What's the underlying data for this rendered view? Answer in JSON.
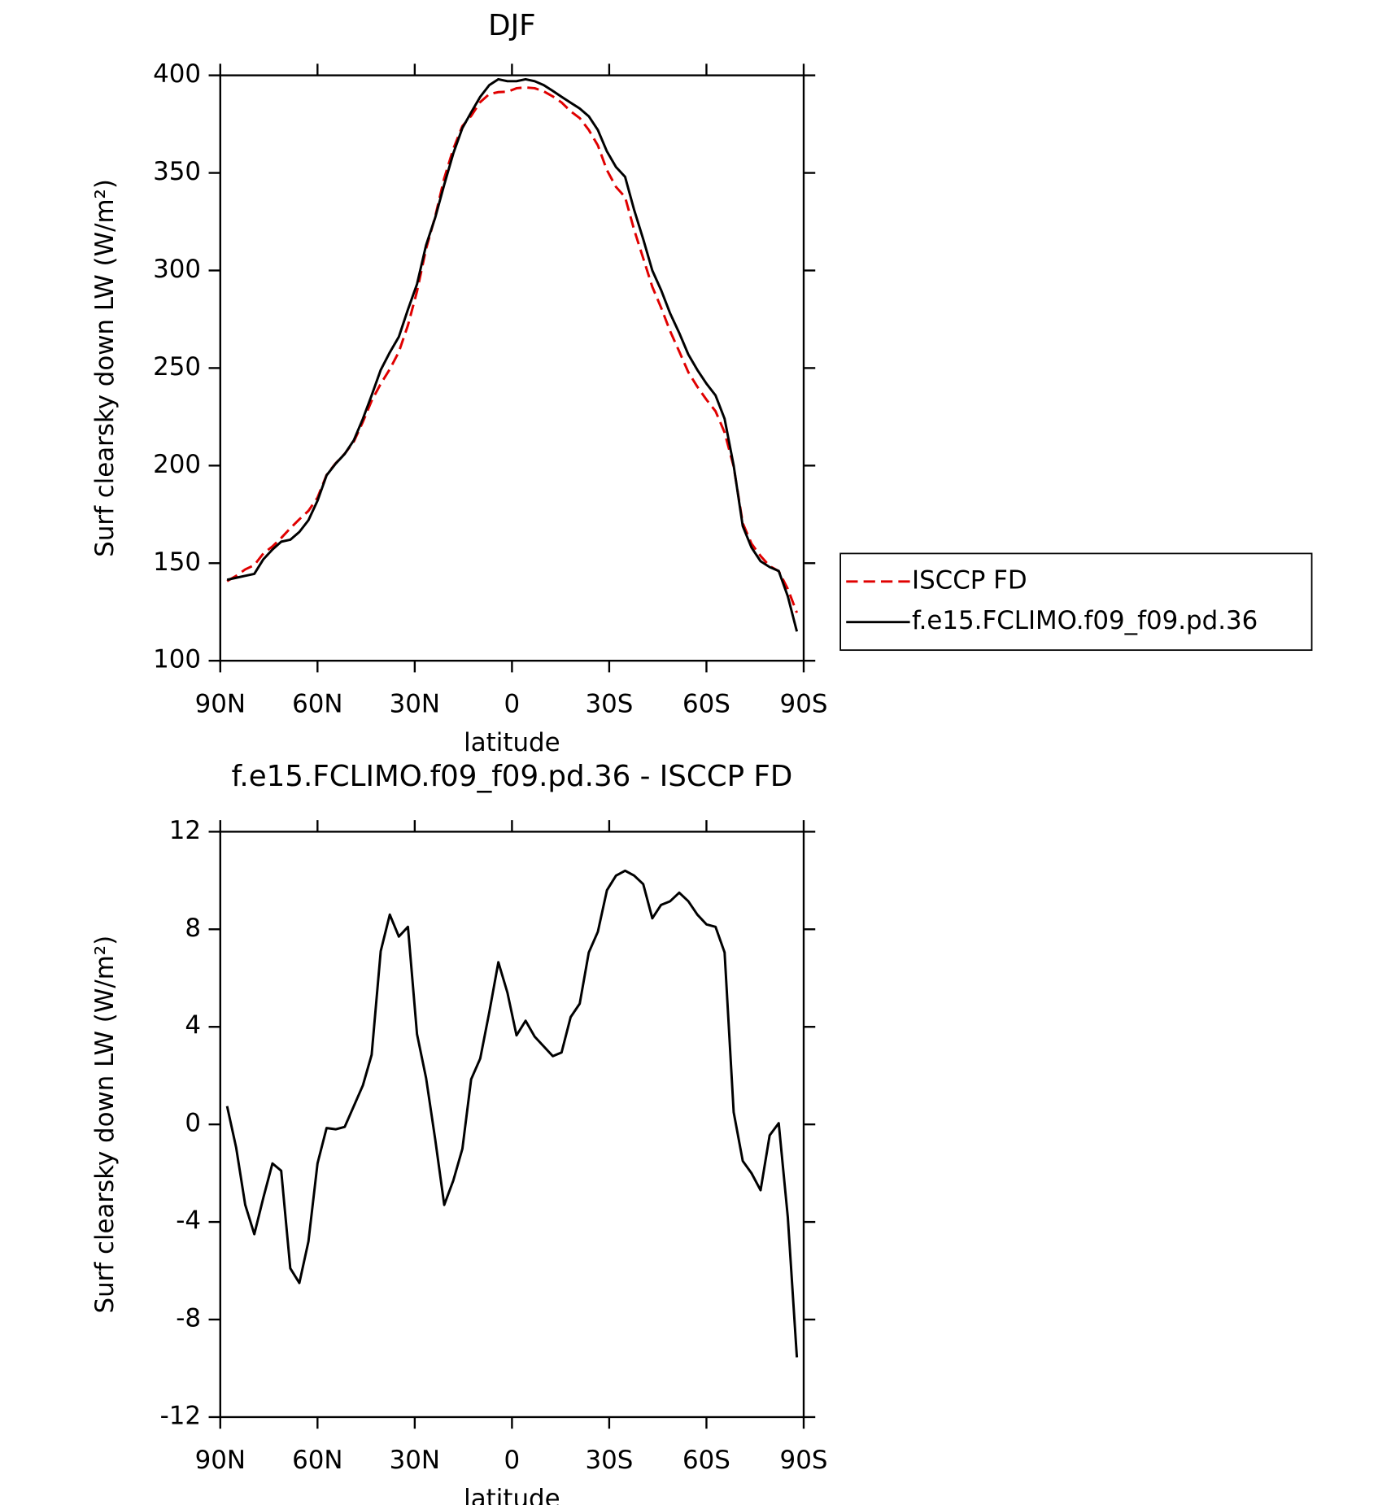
{
  "chart_data": [
    {
      "type": "line",
      "title": "DJF",
      "x_label": "latitude",
      "y_label": "Surf clearsky down LW (W/m²)",
      "x": [
        87.9,
        85.1,
        82.3,
        79.5,
        76.7,
        73.9,
        71.2,
        68.4,
        65.6,
        62.8,
        60.0,
        57.2,
        54.4,
        51.6,
        48.8,
        46.0,
        43.3,
        40.5,
        37.7,
        34.9,
        32.1,
        29.3,
        26.5,
        23.7,
        20.9,
        18.1,
        15.3,
        12.6,
        9.8,
        7.0,
        4.2,
        1.4,
        -1.4,
        -4.2,
        -7.0,
        -9.8,
        -12.6,
        -15.3,
        -18.1,
        -20.9,
        -23.7,
        -26.5,
        -29.3,
        -32.1,
        -34.9,
        -37.7,
        -40.5,
        -43.3,
        -46.0,
        -48.8,
        -51.6,
        -54.4,
        -57.2,
        -60.0,
        -62.8,
        -65.6,
        -68.4,
        -71.2,
        -73.9,
        -76.7,
        -79.5,
        -82.3,
        -85.1,
        -87.9
      ],
      "series": [
        {
          "name": "ISCCP FD",
          "color": "#e00000",
          "dash": true,
          "values": [
            140.8,
            143.5,
            146.8,
            149,
            155,
            158.6,
            162.9,
            167.9,
            172.5,
            176.8,
            183.6,
            195.2,
            201.2,
            206.1,
            212.3,
            222.4,
            233.2,
            241.9,
            249.4,
            258.3,
            271.9,
            289.3,
            311.1,
            327.6,
            347.3,
            362.3,
            374,
            379.2,
            386.3,
            390.4,
            391.4,
            391.6,
            393.4,
            393.8,
            393.4,
            391.8,
            389.2,
            386.1,
            381.6,
            378.1,
            372,
            364.1,
            351.4,
            342.8,
            337.6,
            320.8,
            306.2,
            291.6,
            281,
            268.9,
            258.5,
            247.9,
            240.4,
            233.8,
            227.9,
            217,
            199.5,
            170.5,
            160,
            153.7,
            148.5,
            145.9,
            136.8,
            124.6
          ]
        },
        {
          "name": "f.e15.FCLIMO.f09_f09.pd.36",
          "color": "#000000",
          "dash": false,
          "values": [
            141.5,
            142.5,
            143.5,
            144.5,
            152,
            157,
            161,
            162,
            166,
            172,
            182,
            195,
            201,
            206,
            213,
            224,
            236,
            249,
            258,
            266,
            280,
            293,
            313,
            327,
            344,
            360,
            373,
            381,
            389,
            395,
            398,
            397,
            397,
            398,
            397,
            395,
            392,
            389,
            386,
            383,
            379,
            372,
            361,
            353,
            348,
            331,
            316,
            300,
            290,
            278,
            268,
            257,
            249,
            242,
            236,
            224,
            200,
            169,
            158,
            151,
            148,
            146,
            133,
            115
          ]
        }
      ],
      "xlim": [
        90,
        -90
      ],
      "xticks": [
        {
          "value": 90,
          "label": "90N"
        },
        {
          "value": 60,
          "label": "60N"
        },
        {
          "value": 30,
          "label": "30N"
        },
        0,
        {
          "value": -30,
          "label": "30S"
        },
        {
          "value": -60,
          "label": "60S"
        },
        {
          "value": -90,
          "label": "90S"
        }
      ],
      "ylim": [
        100,
        400
      ],
      "yticks": [
        100,
        150,
        200,
        250,
        300,
        350,
        400
      ],
      "legend": "right"
    },
    {
      "type": "line",
      "title": "f.e15.FCLIMO.f09_f09.pd.36 - ISCCP FD",
      "x_label": "latitude",
      "y_label": "Surf clearsky down LW (W/m²)",
      "x": [
        87.9,
        85.1,
        82.3,
        79.5,
        76.7,
        73.9,
        71.2,
        68.4,
        65.6,
        62.8,
        60.0,
        57.2,
        54.4,
        51.6,
        48.8,
        46.0,
        43.3,
        40.5,
        37.7,
        34.9,
        32.1,
        29.3,
        26.5,
        23.7,
        20.9,
        18.1,
        15.3,
        12.6,
        9.8,
        7.0,
        4.2,
        1.4,
        -1.4,
        -4.2,
        -7.0,
        -9.8,
        -12.6,
        -15.3,
        -18.1,
        -20.9,
        -23.7,
        -26.5,
        -29.3,
        -32.1,
        -34.9,
        -37.7,
        -40.5,
        -43.3,
        -46.0,
        -48.8,
        -51.6,
        -54.4,
        -57.2,
        -60.0,
        -62.8,
        -65.6,
        -68.4,
        -71.2,
        -73.9,
        -76.7,
        -79.5,
        -82.3,
        -85.1,
        -87.9
      ],
      "series": [
        {
          "color": "#000000",
          "dash": false,
          "values": [
            0.75,
            -0.95,
            -3.3,
            -4.5,
            -3.0,
            -1.6,
            -1.9,
            -5.9,
            -6.5,
            -4.8,
            -1.6,
            -0.15,
            -0.2,
            -0.1,
            0.75,
            1.6,
            2.85,
            7.1,
            8.6,
            7.7,
            8.1,
            3.7,
            1.9,
            -0.6,
            -3.3,
            -2.3,
            -1.0,
            1.85,
            2.7,
            4.6,
            6.65,
            5.4,
            3.65,
            4.25,
            3.6,
            3.2,
            2.8,
            2.95,
            4.4,
            4.95,
            7.05,
            7.9,
            9.6,
            10.2,
            10.4,
            10.2,
            9.85,
            8.45,
            9.0,
            9.15,
            9.5,
            9.15,
            8.6,
            8.2,
            8.1,
            7.05,
            0.5,
            -1.5,
            -2.0,
            -2.7,
            -0.45,
            0.05,
            -3.8,
            -9.55
          ]
        }
      ],
      "xlim": [
        90,
        -90
      ],
      "xticks": [
        {
          "value": 90,
          "label": "90N"
        },
        {
          "value": 60,
          "label": "60N"
        },
        {
          "value": 30,
          "label": "30N"
        },
        0,
        {
          "value": -30,
          "label": "30S"
        },
        {
          "value": -60,
          "label": "60S"
        },
        {
          "value": -90,
          "label": "90S"
        }
      ],
      "ylim": [
        -12,
        12
      ],
      "yticks": [
        -12,
        -8,
        -4,
        0,
        4,
        8,
        12
      ]
    }
  ]
}
